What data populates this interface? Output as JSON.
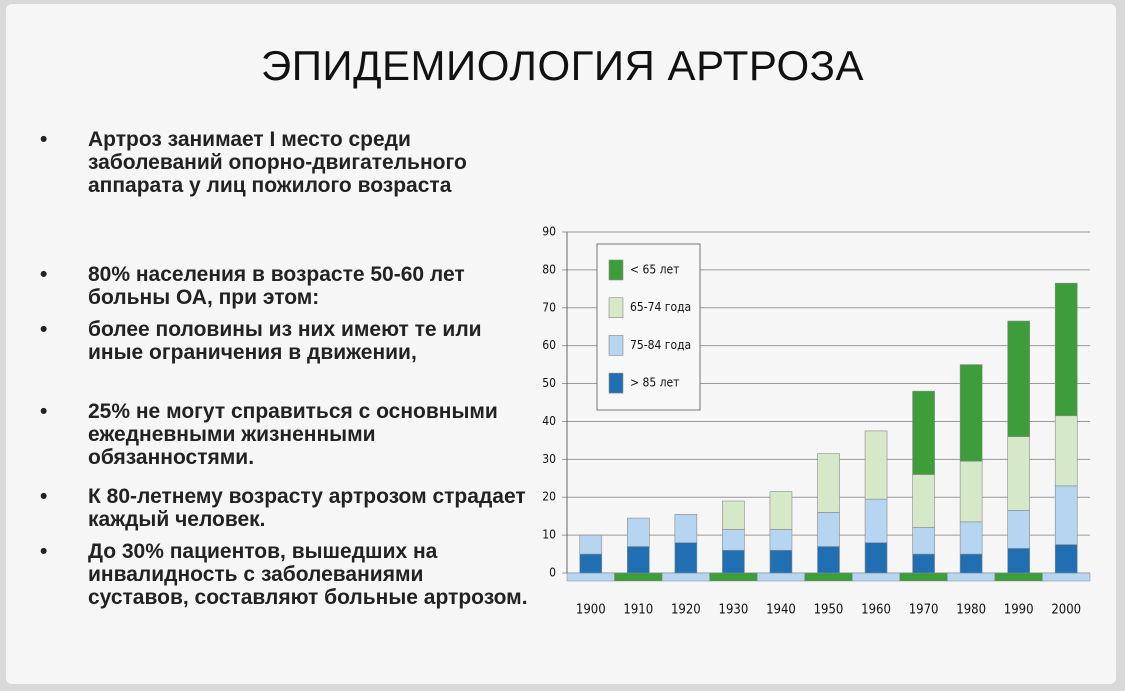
{
  "title": "ЭПИДЕМИОЛОГИЯ АРТРОЗА",
  "bullets": [
    "Артроз занимает I место среди заболеваний опорно-двигательного аппарата у лиц пожилого возраста",
    "80% населения в возрасте 50-60 лет больны ОА, при этом:",
    "более половины из них имеют те или иные ограничения в движении,",
    "25% не могут справиться с основными ежедневными жизненными обязанностями.",
    "К 80-летнему возрасту артрозом страдает каждый человек.",
    "До 30% пациентов, вышедших на инвалидность с заболеваниями суставов, составляют больные артрозом."
  ],
  "chart_data": {
    "type": "bar",
    "stacked": true,
    "categories": [
      "1900",
      "1910",
      "1920",
      "1930",
      "1940",
      "1950",
      "1960",
      "1970",
      "1980",
      "1990",
      "2000"
    ],
    "series": [
      {
        "name": "> 85 лет",
        "color": "#1f6fb2",
        "values": [
          5,
          7,
          8,
          6,
          6,
          7,
          8,
          5,
          5,
          6.5,
          7.5
        ]
      },
      {
        "name": "75-84 года",
        "color": "#b5d5f0",
        "values": [
          5,
          7.5,
          7.5,
          5.5,
          5.5,
          9,
          11.5,
          7,
          8.5,
          10,
          15.5
        ]
      },
      {
        "name": "65-74 года",
        "color": "#d5e9c9",
        "values": [
          0,
          0,
          0,
          7.5,
          10,
          15.5,
          18,
          14,
          16,
          19.5,
          18.5
        ]
      },
      {
        "name": "< 65 лет",
        "color": "#3c9d3a",
        "values": [
          0,
          0,
          0,
          0,
          0,
          0,
          0,
          22,
          25.5,
          30.5,
          35
        ]
      }
    ],
    "ylim": [
      0,
      90
    ],
    "yticks": [
      0,
      10,
      20,
      30,
      40,
      50,
      60,
      70,
      80,
      90
    ],
    "grid": true,
    "legend": "upper left"
  }
}
